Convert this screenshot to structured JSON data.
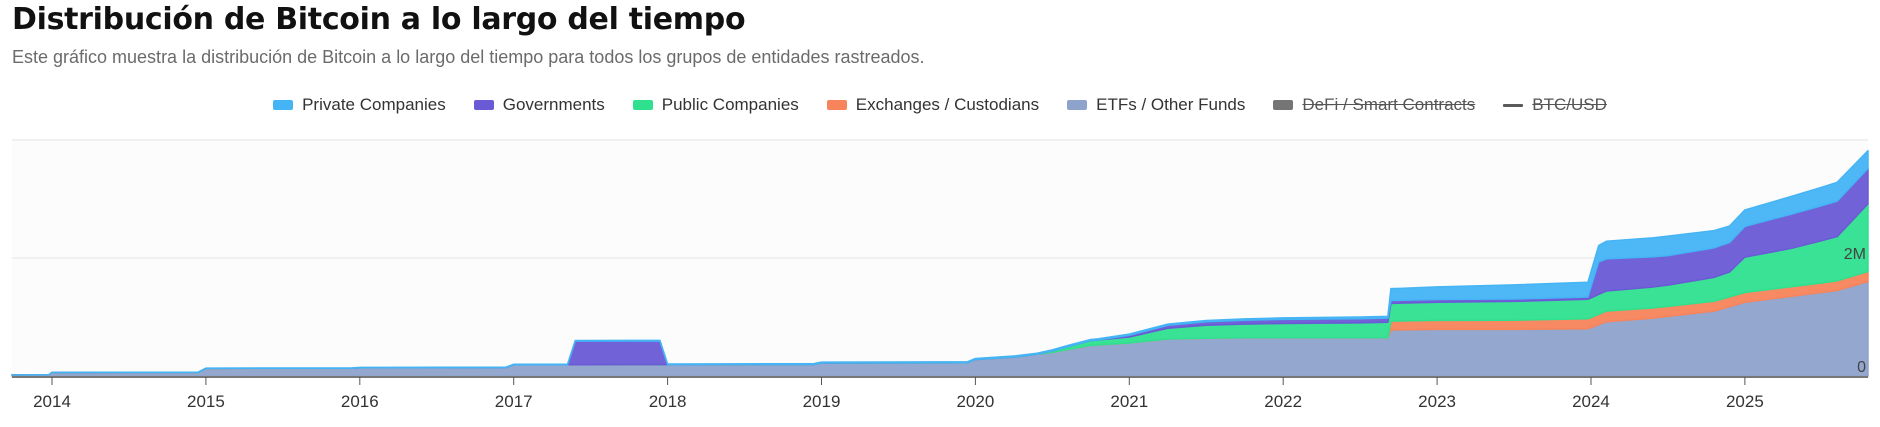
{
  "header": {
    "title": "Distribución de Bitcoin a lo largo del tiempo",
    "subtitle": "Este gráfico muestra la distribución de Bitcoin a lo largo del tiempo para todos los grupos de entidades rastreados."
  },
  "legend": [
    {
      "label": "Private Companies",
      "color": "#45b4f5",
      "hidden": false,
      "kind": "area"
    },
    {
      "label": "Governments",
      "color": "#6a5ad6",
      "hidden": false,
      "kind": "area"
    },
    {
      "label": "Public Companies",
      "color": "#2fe08f",
      "hidden": false,
      "kind": "area"
    },
    {
      "label": "Exchanges / Custodians",
      "color": "#f7845b",
      "hidden": false,
      "kind": "area"
    },
    {
      "label": "ETFs / Other Funds",
      "color": "#8ea3cc",
      "hidden": false,
      "kind": "area"
    },
    {
      "label": "DeFi / Smart Contracts",
      "color": "#757575",
      "hidden": true,
      "kind": "area"
    },
    {
      "label": "BTC/USD",
      "color": "#5a5a5a",
      "hidden": true,
      "kind": "line"
    }
  ],
  "chart_data": {
    "type": "area",
    "stacked": true,
    "title": "Distribución de Bitcoin a lo largo del tiempo",
    "xlabel": "",
    "ylabel": "",
    "xlim": [
      2013.74,
      2025.8
    ],
    "ylim": [
      0,
      4000000
    ],
    "grid": true,
    "legend_position": "top",
    "x_ticks": [
      "2014",
      "2015",
      "2016",
      "2017",
      "2018",
      "2019",
      "2020",
      "2021",
      "2022",
      "2023",
      "2024",
      "2025"
    ],
    "y_ticks": [
      {
        "value": 0,
        "label": "0"
      },
      {
        "value": 2000000,
        "label": "2M"
      },
      {
        "value": 4000000,
        "label": ""
      }
    ],
    "series": [
      {
        "name": "ETFs / Other Funds",
        "color": "#8ea3cc",
        "x": [
          2013.74,
          2013.98,
          2014.0,
          2014.95,
          2015.0,
          2015.95,
          2016.0,
          2016.95,
          2017.0,
          2018.95,
          2019.0,
          2019.95,
          2020.0,
          2020.25,
          2020.5,
          2020.75,
          2021.0,
          2021.25,
          2021.5,
          2021.75,
          2022.0,
          2022.5,
          2022.68,
          2022.7,
          2023.0,
          2023.5,
          2023.98,
          2024.1,
          2024.4,
          2024.8,
          2025.0,
          2025.3,
          2025.6,
          2025.8
        ],
        "values": [
          20000,
          22000,
          60000,
          62000,
          130000,
          132000,
          140000,
          142000,
          190000,
          195000,
          220000,
          225000,
          280000,
          320000,
          400000,
          520000,
          560000,
          630000,
          640000,
          650000,
          650000,
          650000,
          650000,
          780000,
          790000,
          790000,
          800000,
          920000,
          980000,
          1100000,
          1250000,
          1350000,
          1450000,
          1600000
        ]
      },
      {
        "name": "Exchanges / Custodians",
        "color": "#f7845b",
        "x": [
          2013.74,
          2022.68,
          2022.7,
          2023.5,
          2023.98,
          2024.1,
          2024.5,
          2025.0,
          2025.5,
          2025.8
        ],
        "values": [
          0,
          0,
          150000,
          155000,
          170000,
          180000,
          170000,
          165000,
          160000,
          170000
        ]
      },
      {
        "name": "Public Companies",
        "color": "#2fe08f",
        "x": [
          2013.74,
          2020.4,
          2020.6,
          2020.75,
          2021.0,
          2021.25,
          2021.5,
          2022.0,
          2022.5,
          2022.68,
          2022.7,
          2023.5,
          2023.98,
          2024.1,
          2024.5,
          2024.9,
          2025.0,
          2025.3,
          2025.6,
          2025.8
        ],
        "values": [
          0,
          0,
          50000,
          80000,
          100000,
          180000,
          220000,
          240000,
          250000,
          260000,
          300000,
          320000,
          330000,
          340000,
          360000,
          420000,
          600000,
          650000,
          750000,
          1150000
        ]
      },
      {
        "name": "Governments",
        "color": "#6a5ad6",
        "x": [
          2013.74,
          2017.35,
          2017.4,
          2017.95,
          2018.0,
          2020.8,
          2021.0,
          2021.25,
          2021.5,
          2022.0,
          2022.5,
          2022.68,
          2022.7,
          2023.5,
          2023.98,
          2024.05,
          2024.5,
          2024.9,
          2025.0,
          2025.3,
          2025.6,
          2025.8
        ],
        "values": [
          0,
          0,
          400000,
          400000,
          0,
          0,
          30000,
          50000,
          60000,
          70000,
          70000,
          70000,
          50000,
          40000,
          40000,
          550000,
          500000,
          500000,
          520000,
          580000,
          600000,
          600000
        ]
      },
      {
        "name": "Private Companies",
        "color": "#45b4f5",
        "x": [
          2013.74,
          2021.0,
          2021.5,
          2022.5,
          2022.68,
          2022.7,
          2023.5,
          2023.98,
          2024.1,
          2024.5,
          2024.9,
          2025.0,
          2025.3,
          2025.6,
          2025.8
        ],
        "values": [
          0,
          20000,
          20000,
          30000,
          30000,
          200000,
          240000,
          250000,
          300000,
          330000,
          280000,
          280000,
          300000,
          320000,
          300000
        ]
      }
    ]
  }
}
